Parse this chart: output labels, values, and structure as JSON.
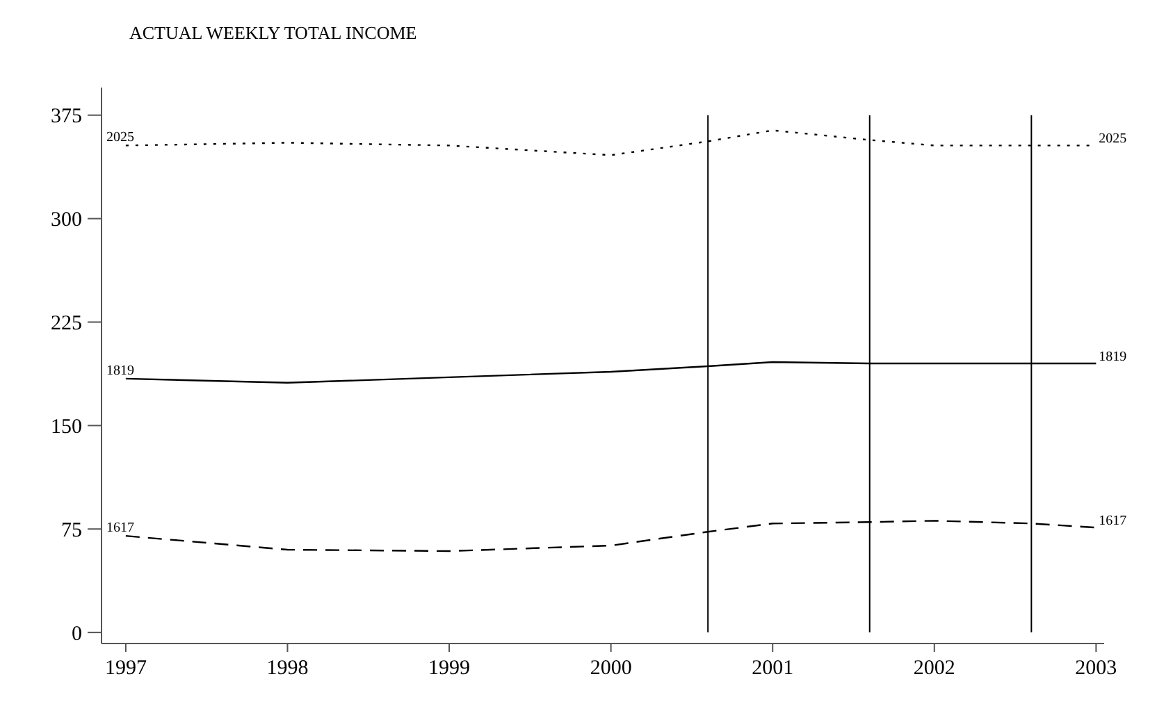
{
  "chart_data": {
    "type": "line",
    "title": "ACTUAL WEEKLY TOTAL INCOME",
    "x": [
      1997,
      1998,
      1999,
      2000,
      2000.6,
      2001,
      2001.6,
      2002,
      2002.6,
      2003
    ],
    "series": [
      {
        "name": "2025",
        "color": "#000000",
        "line_style": "dotted",
        "values": [
          353,
          355,
          353,
          346,
          356,
          364,
          357,
          353,
          353,
          353
        ]
      },
      {
        "name": "1819",
        "color": "#000000",
        "line_style": "solid",
        "values": [
          184,
          181,
          185,
          189,
          193,
          196,
          195,
          195,
          195,
          195
        ]
      },
      {
        "name": "1617",
        "color": "#000000",
        "line_style": "dashed",
        "values": [
          70,
          60,
          59,
          63,
          73,
          79,
          80,
          81,
          79,
          76
        ]
      }
    ],
    "xlim": [
      1996.85,
      2003.05
    ],
    "xticks": [
      1997,
      1998,
      1999,
      2000,
      2001,
      2002,
      2003
    ],
    "ylim": [
      -8,
      395
    ],
    "yticks": [
      0,
      75,
      150,
      225,
      300,
      375
    ],
    "ref_lines": [
      {
        "axis": "x",
        "value": 2000.6,
        "color": "#000000"
      },
      {
        "axis": "x",
        "value": 2001.6,
        "color": "#000000"
      },
      {
        "axis": "x",
        "value": 2002.6,
        "color": "#000000"
      }
    ],
    "grid": false,
    "marker": "none"
  }
}
